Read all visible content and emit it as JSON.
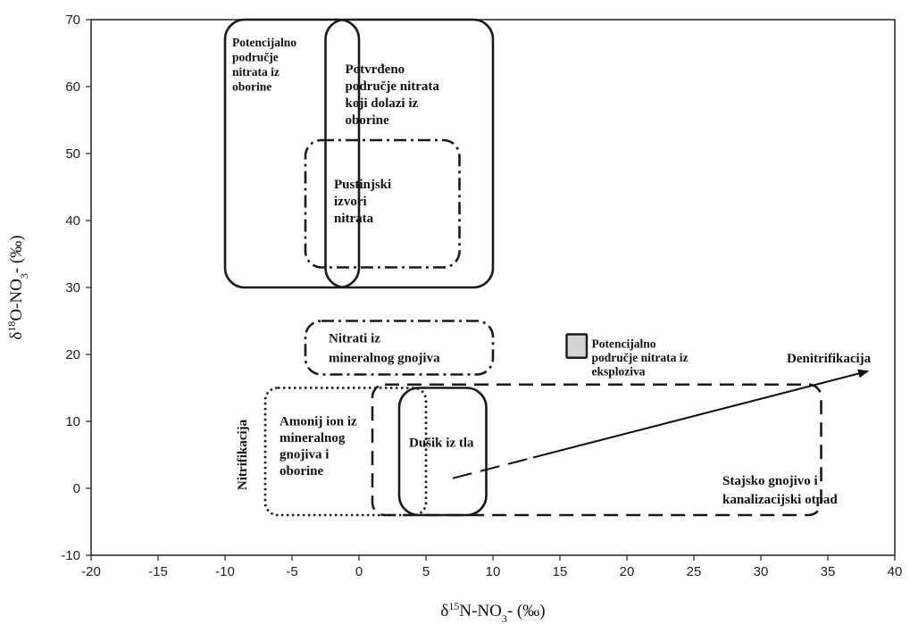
{
  "chart_data": {
    "type": "scatter",
    "title": "",
    "xlabel": "δ15N-NO3- (‰)",
    "ylabel": "δ18O-NO3- (‰)",
    "x_axis": {
      "base": "δ",
      "sup": "15",
      "mid": "N-NO",
      "sub": "3",
      "tail": "- (‰)"
    },
    "y_axis": {
      "base": "δ",
      "sup": "18",
      "mid": "O-NO",
      "sub": "3",
      "tail": "- (‰)"
    },
    "xlim": [
      -20,
      40
    ],
    "ylim": [
      -10,
      70
    ],
    "x_ticks": [
      -20,
      -15,
      -10,
      -5,
      0,
      5,
      10,
      15,
      20,
      25,
      30,
      35,
      40
    ],
    "y_ticks": [
      -10,
      0,
      10,
      20,
      30,
      40,
      50,
      60,
      70
    ],
    "grid": false,
    "regions": [
      {
        "id": "potential-precip",
        "lines": [
          "Potencijalno",
          "područje",
          "nitrata iz",
          "oborine"
        ],
        "style": "solid",
        "x": [
          -10,
          0
        ],
        "y": [
          30,
          70
        ]
      },
      {
        "id": "confirmed-precip",
        "lines": [
          "Potvrđeno",
          "područje nitrata",
          "koji dolazi iz",
          "oborine"
        ],
        "style": "solid",
        "x": [
          -2.5,
          10
        ],
        "y": [
          30,
          70
        ]
      },
      {
        "id": "desert",
        "lines": [
          "Pustinjski",
          "izvori",
          "nitrata"
        ],
        "style": "dashdot",
        "x": [
          -4,
          7.5
        ],
        "y": [
          33,
          52
        ]
      },
      {
        "id": "mineral-fertilizer",
        "lines": [
          "Nitrati iz",
          "mineralnog gnojiva"
        ],
        "style": "dashdot",
        "x": [
          -4,
          10
        ],
        "y": [
          17,
          25
        ]
      },
      {
        "id": "explosives",
        "lines": [
          "Potencijalno",
          "područje nitrata iz",
          "eksploziva"
        ],
        "style": "filled",
        "x": [
          15.5,
          17
        ],
        "y": [
          19.5,
          23
        ]
      },
      {
        "id": "ammonium",
        "lines": [
          "Amonij ion iz",
          "mineralnog",
          "gnojiva i",
          "oborine"
        ],
        "style": "dotted",
        "x": [
          -7,
          5
        ],
        "y": [
          -4,
          15
        ]
      },
      {
        "id": "soil-n",
        "lines": [
          "Dušik iz tla"
        ],
        "style": "solid",
        "x": [
          3,
          9.5
        ],
        "y": [
          -4,
          15
        ]
      },
      {
        "id": "manure",
        "lines": [
          "Stajsko gnojivo i",
          "kanalizacijski otpad"
        ],
        "style": "dashed",
        "x": [
          1,
          34.5
        ],
        "y": [
          -4,
          15.5
        ]
      }
    ],
    "annotations": [
      {
        "id": "nitrification",
        "text": "Nitrifikacija",
        "orientation": "vertical",
        "x": -8,
        "y": 5
      },
      {
        "id": "denitrification",
        "text": "Denitrifikacija",
        "x": 33,
        "y": 19.5
      }
    ],
    "arrow": {
      "from": [
        7,
        1.5
      ],
      "to": [
        38,
        17.5
      ],
      "dashed_portion_end": [
        13,
        4.6
      ]
    }
  }
}
